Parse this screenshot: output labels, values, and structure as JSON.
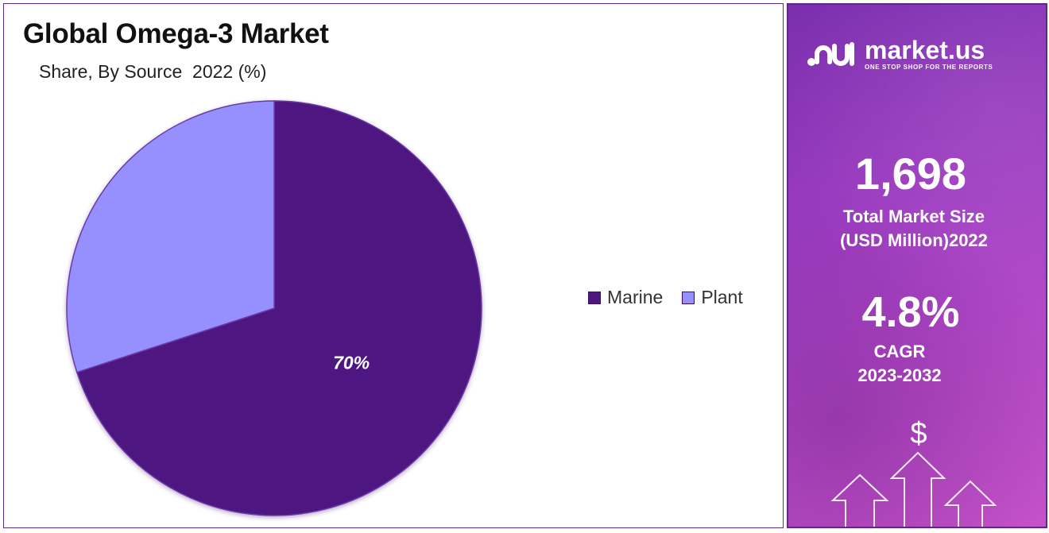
{
  "chart_data": {
    "type": "pie",
    "title": "Global Omega-3 Market",
    "subtitle": "Share, By Source  2022 (%)",
    "categories": [
      "Marine",
      "Plant"
    ],
    "values": [
      70,
      30
    ],
    "data_labels": [
      "70%",
      ""
    ],
    "colors": [
      "#4e1680",
      "#9690ff"
    ],
    "legend_position": "right",
    "legend": [
      "Marine",
      "Plant"
    ]
  },
  "brand": {
    "name": "market.us",
    "tagline": "ONE STOP SHOP FOR THE REPORTS"
  },
  "stats": {
    "market_size_value": "1,698",
    "market_size_label_line1": "Total Market Size",
    "market_size_label_line2": "(USD Million)2022",
    "cagr_value": "4.8%",
    "cagr_label_line1": "CAGR",
    "cagr_label_line2": "2023-2032"
  },
  "icons": {
    "currency": "$",
    "arrows": "growth-arrows-icon"
  }
}
